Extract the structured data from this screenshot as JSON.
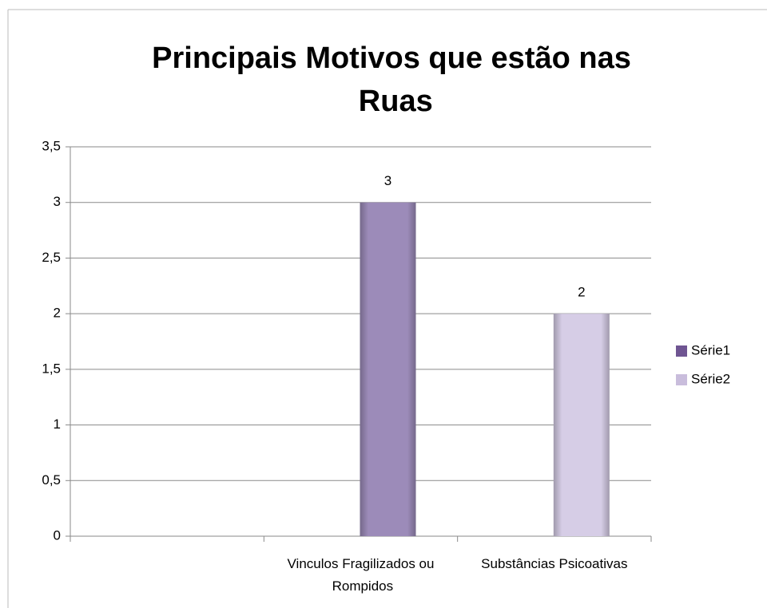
{
  "chart_data": {
    "type": "bar",
    "title": "Principais Motivos que estão nas Ruas",
    "categories": [
      null,
      "Vinculos Fragilizados ou Rompidos",
      "Substâncias Psicoativas"
    ],
    "series": [
      {
        "name": "Série1",
        "color": "#9c8bb9",
        "values": [
          null,
          3,
          null
        ]
      },
      {
        "name": "Série2",
        "color": "#d6cde6",
        "values": [
          null,
          null,
          2
        ]
      }
    ],
    "legend_colors": [
      "#6f5592",
      "#c9bddc"
    ],
    "ylim": [
      0,
      3.5
    ],
    "yticks": [
      0,
      {
        "value": 0.5,
        "label": "0,5"
      },
      1,
      {
        "value": 1.5,
        "label": "1,5"
      },
      2,
      {
        "value": 2.5,
        "label": "2,5"
      },
      3,
      {
        "value": 3.5,
        "label": "3,5"
      }
    ],
    "grid": true,
    "legend": "right"
  }
}
